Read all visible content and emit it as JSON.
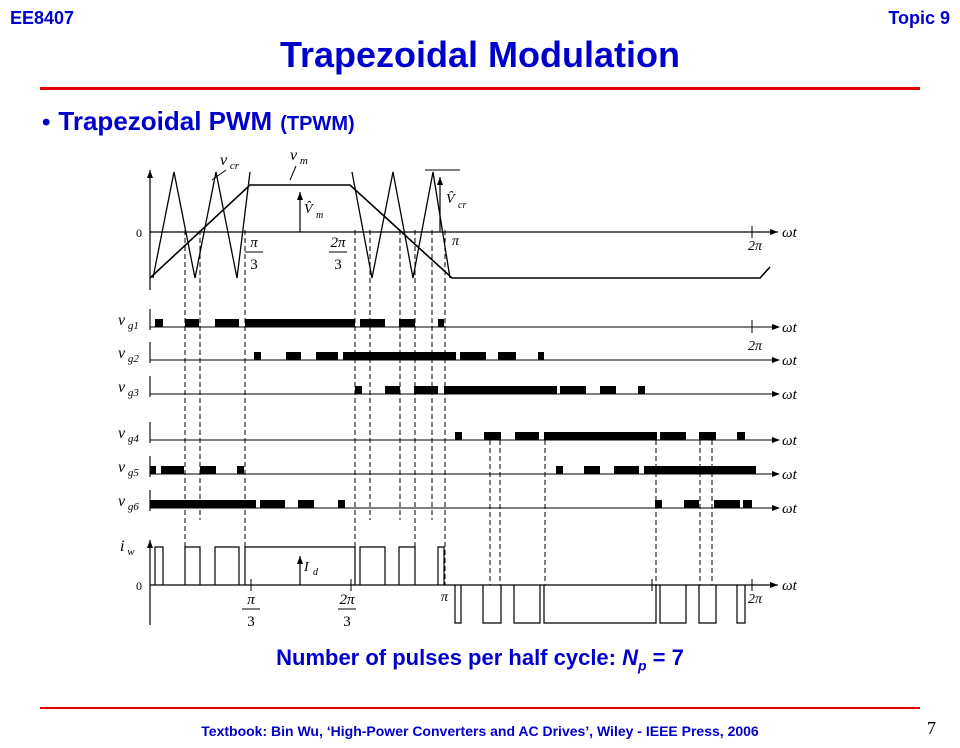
{
  "header": {
    "course": "EE8407",
    "topic": "Topic 9"
  },
  "title": "Trapezoidal Modulation",
  "bullet": {
    "main": "Trapezoidal PWM",
    "sub": "(TPWM)"
  },
  "caption": {
    "prefix": "Number of pulses per half cycle: ",
    "symbol": "N",
    "subscript": "p",
    "suffix": " = 7"
  },
  "footer": "Textbook: Bin Wu, ‘High-Power Converters and AC Drives’, Wiley - IEEE Press, 2006",
  "page_number": "7",
  "diagram": {
    "axis_label": "ωt",
    "zero": "0",
    "tick_pi": "π",
    "tick_two_pi": "2π",
    "tick_pi_over_3": {
      "num": "π",
      "den": "3"
    },
    "tick_two_pi_over_3": {
      "num": "2π",
      "den": "3"
    },
    "carrier_label": "v",
    "carrier_sub": "cr",
    "modulating_label": "v",
    "modulating_sub": "m",
    "peak_modulating": "V̂",
    "peak_modulating_sub": "m",
    "peak_carrier": "V̂",
    "peak_carrier_sub": "cr",
    "gate_signals": [
      {
        "name": "v",
        "sub": "g1"
      },
      {
        "name": "v",
        "sub": "g2"
      },
      {
        "name": "v",
        "sub": "g3"
      },
      {
        "name": "v",
        "sub": "g4"
      },
      {
        "name": "v",
        "sub": "g5"
      },
      {
        "name": "v",
        "sub": "g6"
      }
    ],
    "current_label": "i",
    "current_sub": "w",
    "current_level": "I",
    "current_level_sub": "d"
  }
}
